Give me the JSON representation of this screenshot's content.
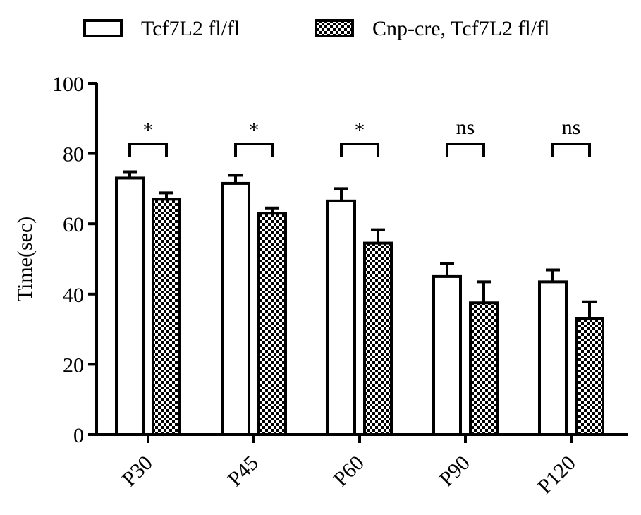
{
  "chart_data": {
    "type": "bar",
    "title": "",
    "xlabel": "",
    "ylabel": "Time(sec)",
    "ylim": [
      0,
      100
    ],
    "yticks": [
      "0",
      "20",
      "40",
      "60",
      "80",
      "100"
    ],
    "categories": [
      "P30",
      "P45",
      "P60",
      "P90",
      "P120"
    ],
    "series": [
      {
        "name": "Tcf7L2 fl/fl",
        "pattern": "open",
        "values": [
          73,
          71.5,
          66.5,
          45,
          43.5
        ],
        "error": [
          1.8,
          2.3,
          3.5,
          3.8,
          3.4
        ]
      },
      {
        "name": "Cnp-cre, Tcf7L2 fl/fl",
        "pattern": "checkered",
        "values": [
          67,
          63,
          54.5,
          37.5,
          33
        ],
        "error": [
          1.8,
          1.5,
          3.8,
          6,
          4.8
        ]
      }
    ],
    "significance": [
      "*",
      "*",
      "*",
      "ns",
      "ns"
    ],
    "legend_position": "top",
    "grid": false,
    "colors": {
      "bar_edge": "#000000",
      "bar_fill": "#ffffff",
      "pattern_fill": "#000000"
    }
  }
}
